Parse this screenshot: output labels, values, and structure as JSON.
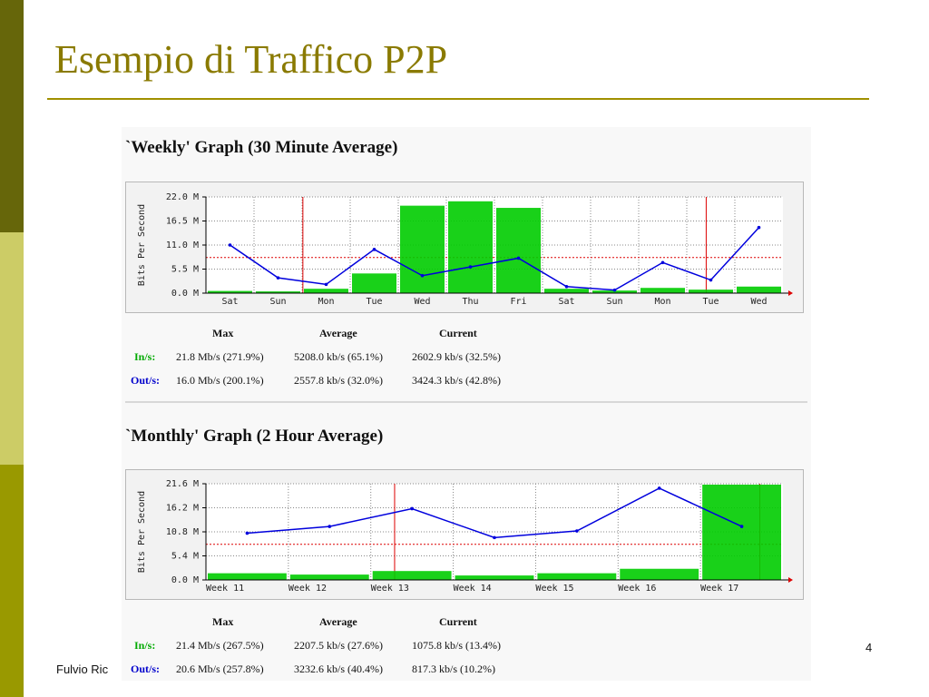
{
  "slide": {
    "title": "Esempio di Traffico P2P",
    "footer": "Fulvio Ric",
    "page_number": "4"
  },
  "colors": {
    "in": "#00cc00",
    "out": "#0000dd",
    "marker": "#dd0000",
    "title": "#8a7a00"
  },
  "graphs": [
    {
      "title": "`Weekly' Graph (30 Minute Average)",
      "ylabel": "Bits Per Second",
      "stats": {
        "headers": [
          "Max",
          "Average",
          "Current"
        ],
        "rows": [
          {
            "label": "In/s:",
            "max": "21.8 Mb/s (271.9%)",
            "avg": "5208.0 kb/s (65.1%)",
            "cur": "2602.9 kb/s (32.5%)"
          },
          {
            "label": "Out/s:",
            "max": "16.0 Mb/s (200.1%)",
            "avg": "2557.8 kb/s (32.0%)",
            "cur": "3424.3 kb/s (42.8%)"
          }
        ]
      }
    },
    {
      "title": "`Monthly' Graph (2 Hour Average)",
      "ylabel": "Bits Per Second",
      "stats": {
        "headers": [
          "Max",
          "Average",
          "Current"
        ],
        "rows": [
          {
            "label": "In/s:",
            "max": "21.4 Mb/s (267.5%)",
            "avg": "2207.5 kb/s (27.6%)",
            "cur": "1075.8 kb/s (13.4%)"
          },
          {
            "label": "Out/s:",
            "max": "20.6 Mb/s (257.8%)",
            "avg": "3232.6 kb/s (40.4%)",
            "cur": "817.3 kb/s (10.2%)"
          }
        ]
      }
    }
  ],
  "chart_data": [
    {
      "type": "area",
      "title": "`Weekly' Graph (30 Minute Average)",
      "ylabel": "Bits Per Second",
      "yticks": [
        "0.0 M",
        "5.5 M",
        "11.0 M",
        "16.5 M",
        "22.0 M"
      ],
      "ylim": [
        0,
        22.0
      ],
      "categories": [
        "Sat",
        "Sun",
        "Mon",
        "Tue",
        "Wed",
        "Thu",
        "Fri",
        "Sat",
        "Sun",
        "Mon",
        "Tue",
        "Wed"
      ],
      "series": [
        {
          "name": "In/s",
          "values": [
            0.5,
            0.4,
            1.0,
            4.5,
            20.0,
            21.0,
            19.5,
            1.0,
            0.6,
            1.2,
            0.8,
            1.5
          ]
        },
        {
          "name": "Out/s",
          "values": [
            11.0,
            3.5,
            2.0,
            10.0,
            4.0,
            6.0,
            8.0,
            1.5,
            0.7,
            7.0,
            3.0,
            15.0
          ]
        }
      ]
    },
    {
      "type": "area",
      "title": "`Monthly' Graph (2 Hour Average)",
      "ylabel": "Bits Per Second",
      "yticks": [
        "0.0 M",
        "5.4 M",
        "10.8 M",
        "16.2 M",
        "21.6 M"
      ],
      "ylim": [
        0,
        21.6
      ],
      "categories": [
        "Week 11",
        "Week 12",
        "Week 13",
        "Week 14",
        "Week 15",
        "Week 16",
        "Week 17"
      ],
      "series": [
        {
          "name": "In/s",
          "values": [
            1.5,
            1.2,
            2.0,
            1.0,
            1.5,
            2.5,
            21.4
          ]
        },
        {
          "name": "Out/s",
          "values": [
            10.5,
            12.0,
            16.0,
            9.5,
            11.0,
            20.6,
            12.0
          ]
        }
      ]
    }
  ]
}
